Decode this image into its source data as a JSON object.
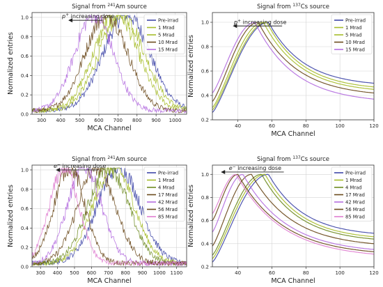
{
  "colors": {
    "Pre-irrad": "#3f47a8",
    "1 Mrad": "#a7bd2a",
    "4 Mrad": "#6d8a1f",
    "5 Mrad": "#a7bd2a",
    "10 Mrad": "#6b4a1c",
    "15 Mrad": "#b46ee0",
    "17 Mrad": "#6b4a1c",
    "42 Mrad": "#b46ee0",
    "56 Mrad": "#6b4a1c",
    "85 Mrad": "#e07fd0"
  },
  "chart_data": [
    {
      "type": "line",
      "title_prefix": "Signal from ",
      "title_sup": "241",
      "title_suffix": "Am source",
      "xlabel": "MCA Channel",
      "ylabel": "Normalized entries",
      "xlim": [
        250,
        1060
      ],
      "ylim": [
        0,
        1.05
      ],
      "xticks": [
        300,
        400,
        500,
        600,
        700,
        800,
        900,
        1000
      ],
      "yticks": [
        0.0,
        0.2,
        0.4,
        0.6,
        0.8,
        1.0
      ],
      "grid": true,
      "noisy": true,
      "annotation": {
        "particle": "p",
        "charge": "+",
        "text": " increasing dose",
        "arrow_from": 620,
        "arrow_to": 440,
        "y": 0.97
      },
      "legend_position": "top-right",
      "series": [
        {
          "name": "Pre-irrad",
          "peak": 745,
          "width": 120
        },
        {
          "name": "1 Mrad",
          "peak": 720,
          "width": 118
        },
        {
          "name": "5 Mrad",
          "peak": 690,
          "width": 116
        },
        {
          "name": "10 Mrad",
          "peak": 640,
          "width": 110
        },
        {
          "name": "15 Mrad",
          "peak": 575,
          "width": 100
        }
      ]
    },
    {
      "type": "line",
      "title_prefix": "Signal from ",
      "title_sup": "137",
      "title_suffix": "Cs source",
      "xlabel": "MCA Channel",
      "ylabel": "Normalized entries",
      "xlim": [
        25,
        120
      ],
      "ylim": [
        0.2,
        1.08
      ],
      "xticks": [
        40,
        60,
        80,
        100,
        120
      ],
      "yticks": [
        0.2,
        0.4,
        0.6,
        0.8,
        1.0
      ],
      "grid": true,
      "noisy": false,
      "annotation": {
        "particle": "p",
        "charge": "+",
        "text": " increasing dose",
        "arrow_from": 66,
        "arrow_to": 37,
        "y": 0.97
      },
      "legend_position": "top-right",
      "series": [
        {
          "name": "Pre-irrad",
          "peak": 58,
          "y0": 0.26,
          "tail": 0.5
        },
        {
          "name": "1 Mrad",
          "peak": 57,
          "y0": 0.28,
          "tail": 0.47
        },
        {
          "name": "5 Mrad",
          "peak": 55,
          "y0": 0.3,
          "tail": 0.45
        },
        {
          "name": "10 Mrad",
          "peak": 52,
          "y0": 0.35,
          "tail": 0.42
        },
        {
          "name": "15 Mrad",
          "peak": 50,
          "y0": 0.42,
          "tail": 0.37
        }
      ]
    },
    {
      "type": "line",
      "title_prefix": "Signal from ",
      "title_sup": "241",
      "title_suffix": "Am source",
      "xlabel": "MCA Channel",
      "ylabel": "Normalized entries",
      "xlim": [
        250,
        1160
      ],
      "ylim": [
        0,
        1.05
      ],
      "xticks": [
        300,
        400,
        500,
        600,
        700,
        800,
        900,
        1000,
        1100
      ],
      "yticks": [
        0.0,
        0.2,
        0.4,
        0.6,
        0.8,
        1.0
      ],
      "grid": true,
      "noisy": true,
      "annotation": {
        "particle": "e",
        "charge": "−",
        "text": " increasing dose",
        "arrow_from": 640,
        "arrow_to": 390,
        "y": 1.0
      },
      "legend_position": "top-right",
      "series": [
        {
          "name": "Pre-irrad",
          "peak": 760,
          "width": 125
        },
        {
          "name": "1 Mrad",
          "peak": 730,
          "width": 120
        },
        {
          "name": "4 Mrad",
          "peak": 700,
          "width": 118
        },
        {
          "name": "17 Mrad",
          "peak": 630,
          "width": 110
        },
        {
          "name": "42 Mrad",
          "peak": 560,
          "width": 100
        },
        {
          "name": "56 Mrad",
          "peak": 470,
          "width": 90
        },
        {
          "name": "85 Mrad",
          "peak": 440,
          "width": 85
        }
      ]
    },
    {
      "type": "line",
      "title_prefix": "Signal from ",
      "title_sup": "137",
      "title_suffix": "Cs source",
      "xlabel": "MCA Channel",
      "ylabel": "Normalized entries",
      "xlim": [
        25,
        120
      ],
      "ylim": [
        0.2,
        1.08
      ],
      "xticks": [
        40,
        60,
        80,
        100,
        120
      ],
      "yticks": [
        0.2,
        0.4,
        0.6,
        0.8,
        1.0
      ],
      "grid": true,
      "noisy": false,
      "annotation": {
        "particle": "e",
        "charge": "−",
        "text": " increasing dose",
        "arrow_from": 67,
        "arrow_to": 30,
        "y": 1.02
      },
      "legend_position": "top-right",
      "series": [
        {
          "name": "Pre-irrad",
          "peak": 58,
          "y0": 0.24,
          "tail": 0.49
        },
        {
          "name": "1 Mrad",
          "peak": 56,
          "y0": 0.27,
          "tail": 0.46
        },
        {
          "name": "4 Mrad",
          "peak": 54,
          "y0": 0.3,
          "tail": 0.44
        },
        {
          "name": "17 Mrad",
          "peak": 48,
          "y0": 0.38,
          "tail": 0.4
        },
        {
          "name": "42 Mrad",
          "peak": 43,
          "y0": 0.5,
          "tail": 0.35
        },
        {
          "name": "56 Mrad",
          "peak": 40,
          "y0": 0.6,
          "tail": 0.33
        },
        {
          "name": "85 Mrad",
          "peak": 39,
          "y0": 0.66,
          "tail": 0.31
        }
      ]
    }
  ]
}
